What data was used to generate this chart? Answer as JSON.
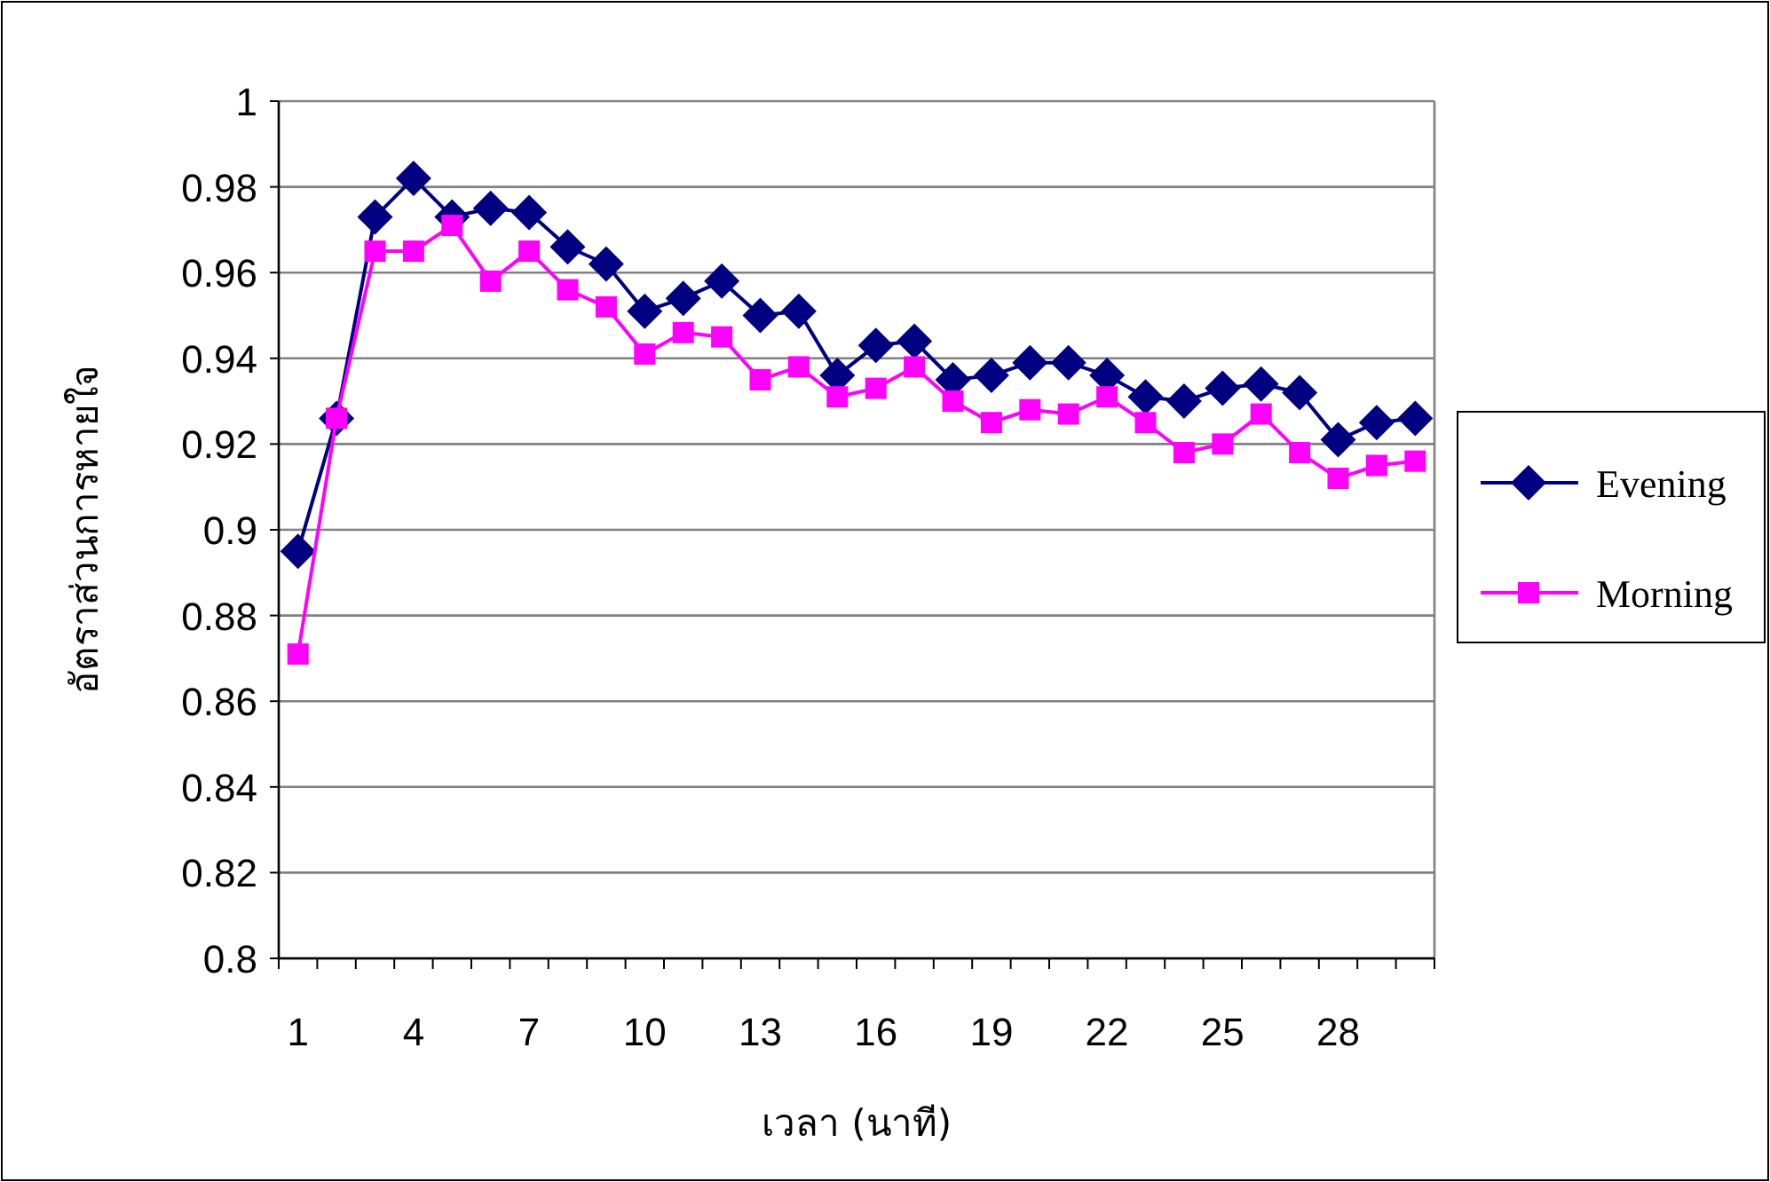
{
  "chart_data": {
    "type": "line",
    "xlabel": "เวลา (นาที)",
    "ylabel": "อัตราส่วนการหายใจ",
    "categories": [
      "1",
      null,
      null,
      "4",
      null,
      null,
      "7",
      null,
      null,
      "10",
      null,
      null,
      "13",
      null,
      null,
      "16",
      null,
      null,
      "19",
      null,
      null,
      "22",
      null,
      null,
      "25",
      null,
      null,
      "28",
      null,
      null
    ],
    "ylim": [
      0.8,
      1
    ],
    "yticks": [
      0.8,
      0.82,
      0.84,
      0.86,
      0.88,
      0.9,
      0.92,
      0.94,
      0.96,
      0.98,
      1
    ],
    "grid": "y",
    "legend": "right",
    "line_style": "solid",
    "series": [
      {
        "name": "Evening",
        "color": "#000080",
        "marker": "diamond",
        "values": [
          0.895,
          0.926,
          0.973,
          0.982,
          0.973,
          0.975,
          0.974,
          0.966,
          0.962,
          0.951,
          0.954,
          0.958,
          0.95,
          0.951,
          0.936,
          0.943,
          0.944,
          0.935,
          0.936,
          0.939,
          0.939,
          0.936,
          0.931,
          0.93,
          0.933,
          0.934,
          0.932,
          0.921,
          0.925,
          0.926
        ]
      },
      {
        "name": "Morning",
        "color": "#ff00ff",
        "marker": "square",
        "values": [
          0.871,
          0.926,
          0.965,
          0.965,
          0.971,
          0.958,
          0.965,
          0.956,
          0.952,
          0.941,
          0.946,
          0.945,
          0.935,
          0.938,
          0.931,
          0.933,
          0.938,
          0.93,
          0.925,
          0.928,
          0.927,
          0.931,
          0.925,
          0.918,
          0.92,
          0.927,
          0.918,
          0.912,
          0.915,
          0.916
        ]
      }
    ]
  }
}
